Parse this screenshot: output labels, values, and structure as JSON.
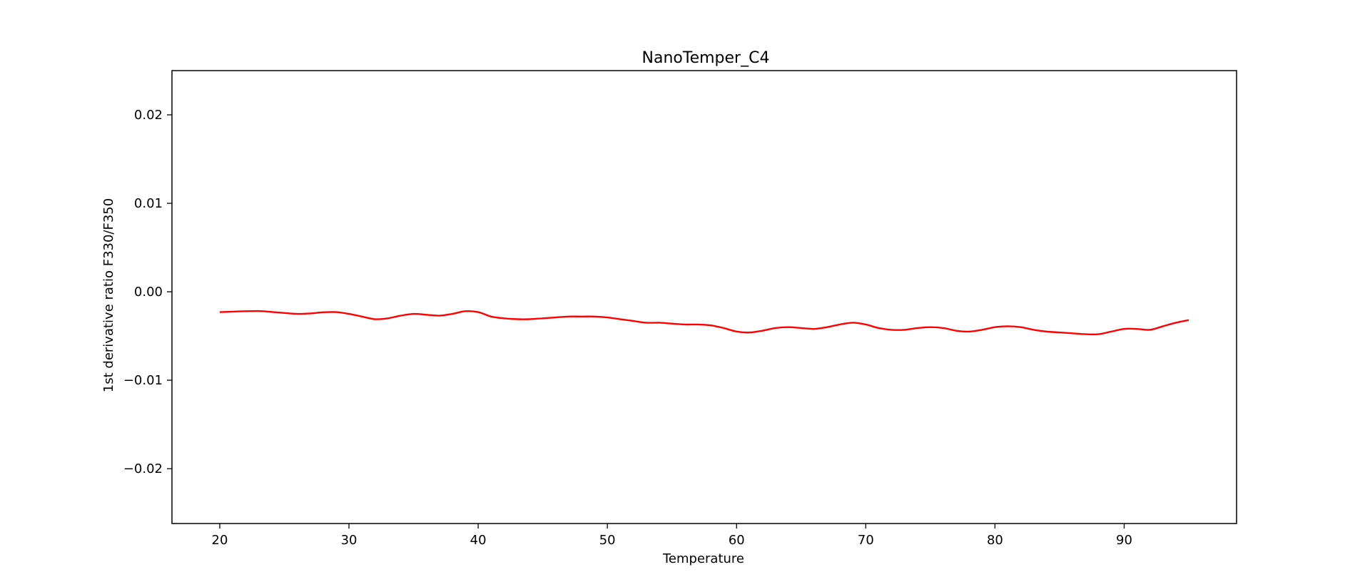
{
  "chart_data": {
    "type": "line",
    "title": "NanoTemper_C4",
    "xlabel": "Temperature",
    "ylabel": "1st derivative ratio F330/F350",
    "xlim": [
      16.3,
      98.7
    ],
    "ylim": [
      -0.0262,
      0.025
    ],
    "xticks": [
      20,
      30,
      40,
      50,
      60,
      70,
      80,
      90
    ],
    "yticks": [
      0.02,
      0.01,
      0.0,
      -0.01,
      -0.02
    ],
    "ytick_labels": [
      "0.02",
      "0.01",
      "0.00",
      "−0.01",
      "−0.02"
    ],
    "grid": false,
    "series": [
      {
        "color": "#ff0000",
        "x": [
          20,
          21,
          22,
          23,
          24,
          25,
          26,
          27,
          28,
          29,
          30,
          31,
          32,
          33,
          34,
          35,
          36,
          37,
          38,
          39,
          40,
          41,
          42,
          43,
          44,
          45,
          46,
          47,
          48,
          49,
          50,
          51,
          52,
          53,
          54,
          55,
          56,
          57,
          58,
          59,
          60,
          61,
          62,
          63,
          64,
          65,
          66,
          67,
          68,
          69,
          70,
          71,
          72,
          73,
          74,
          75,
          76,
          77,
          78,
          79,
          80,
          81,
          82,
          83,
          84,
          85,
          86,
          87,
          88,
          89,
          90,
          91,
          92,
          93,
          94,
          95
        ],
        "y": [
          -0.0023,
          -0.00225,
          -0.0022,
          -0.00218,
          -0.00228,
          -0.0024,
          -0.0025,
          -0.00245,
          -0.00232,
          -0.0023,
          -0.0025,
          -0.0028,
          -0.0031,
          -0.003,
          -0.0027,
          -0.0025,
          -0.0026,
          -0.0027,
          -0.0025,
          -0.0022,
          -0.0023,
          -0.0028,
          -0.003,
          -0.0031,
          -0.0031,
          -0.003,
          -0.0029,
          -0.0028,
          -0.0028,
          -0.0028,
          -0.0029,
          -0.0031,
          -0.0033,
          -0.0035,
          -0.0035,
          -0.0036,
          -0.0037,
          -0.0037,
          -0.0038,
          -0.0041,
          -0.0045,
          -0.0046,
          -0.0044,
          -0.0041,
          -0.004,
          -0.0041,
          -0.0042,
          -0.004,
          -0.0037,
          -0.0035,
          -0.0037,
          -0.0041,
          -0.0043,
          -0.0043,
          -0.0041,
          -0.004,
          -0.0041,
          -0.0044,
          -0.0045,
          -0.0043,
          -0.004,
          -0.0039,
          -0.004,
          -0.0043,
          -0.0045,
          -0.0046,
          -0.0047,
          -0.0048,
          -0.0048,
          -0.0045,
          -0.0042,
          -0.0042,
          -0.0043,
          -0.0039,
          -0.0035,
          -0.0032
        ]
      }
    ]
  }
}
